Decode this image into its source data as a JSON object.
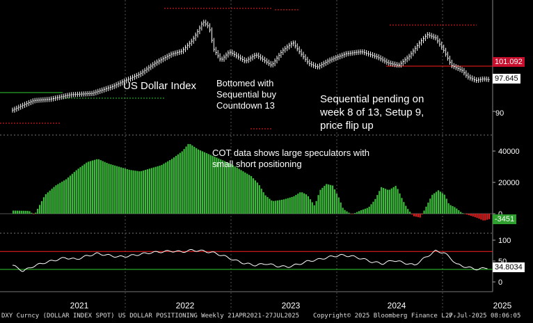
{
  "chart_data": {
    "type": "line",
    "title": "US Dollar Index",
    "x_axis": {
      "labels": [
        "2021",
        "2022",
        "2023",
        "2024",
        "2025"
      ]
    },
    "panels": [
      {
        "name": "DXY",
        "type": "ohlc",
        "y_ticks": [
          90
        ],
        "last_value": "97.645",
        "level_value": "101.092",
        "points": [
          {
            "t": 0.0,
            "v": 90.3
          },
          {
            "t": 0.1,
            "v": 91.5
          },
          {
            "t": 0.2,
            "v": 92.6
          },
          {
            "t": 0.35,
            "v": 92.9
          },
          {
            "t": 0.55,
            "v": 94.0
          },
          {
            "t": 0.75,
            "v": 94.3
          },
          {
            "t": 0.95,
            "v": 96.0
          },
          {
            "t": 1.05,
            "v": 97.2
          },
          {
            "t": 1.2,
            "v": 98.9
          },
          {
            "t": 1.35,
            "v": 101.6
          },
          {
            "t": 1.5,
            "v": 103.7
          },
          {
            "t": 1.6,
            "v": 104.4
          },
          {
            "t": 1.7,
            "v": 107.0
          },
          {
            "t": 1.76,
            "v": 109.5
          },
          {
            "t": 1.8,
            "v": 111.5
          },
          {
            "t": 1.86,
            "v": 110.2
          },
          {
            "t": 1.9,
            "v": 105.0
          },
          {
            "t": 1.97,
            "v": 102.2
          },
          {
            "t": 2.05,
            "v": 104.3
          },
          {
            "t": 2.2,
            "v": 102.0
          },
          {
            "t": 2.3,
            "v": 103.6
          },
          {
            "t": 2.45,
            "v": 101.0
          },
          {
            "t": 2.55,
            "v": 104.5
          },
          {
            "t": 2.65,
            "v": 106.5
          },
          {
            "t": 2.72,
            "v": 104.0
          },
          {
            "t": 2.8,
            "v": 101.5
          },
          {
            "t": 2.88,
            "v": 100.6
          },
          {
            "t": 3.0,
            "v": 102.3
          },
          {
            "t": 3.15,
            "v": 103.8
          },
          {
            "t": 3.3,
            "v": 104.3
          },
          {
            "t": 3.45,
            "v": 103.0
          },
          {
            "t": 3.55,
            "v": 101.6
          },
          {
            "t": 3.65,
            "v": 101.0
          },
          {
            "t": 3.75,
            "v": 103.2
          },
          {
            "t": 3.85,
            "v": 106.5
          },
          {
            "t": 3.92,
            "v": 108.4
          },
          {
            "t": 4.0,
            "v": 107.6
          },
          {
            "t": 4.08,
            "v": 104.5
          },
          {
            "t": 4.15,
            "v": 101.0
          },
          {
            "t": 4.25,
            "v": 99.8
          },
          {
            "t": 4.3,
            "v": 98.3
          },
          {
            "t": 4.38,
            "v": 97.4
          },
          {
            "t": 4.45,
            "v": 97.8
          },
          {
            "t": 4.5,
            "v": 97.6
          }
        ]
      },
      {
        "name": "COT",
        "type": "bar",
        "y_ticks": [
          0,
          20000,
          40000
        ],
        "last_value": "-3451",
        "points": [
          {
            "t": 0.0,
            "v": 2000
          },
          {
            "t": 0.15,
            "v": 1800
          },
          {
            "t": 0.2,
            "v": -800
          },
          {
            "t": 0.3,
            "v": 12000
          },
          {
            "t": 0.4,
            "v": 18000
          },
          {
            "t": 0.5,
            "v": 22000
          },
          {
            "t": 0.6,
            "v": 28000
          },
          {
            "t": 0.7,
            "v": 33000
          },
          {
            "t": 0.8,
            "v": 35000
          },
          {
            "t": 0.9,
            "v": 32000
          },
          {
            "t": 1.0,
            "v": 30000
          },
          {
            "t": 1.1,
            "v": 28000
          },
          {
            "t": 1.2,
            "v": 27000
          },
          {
            "t": 1.3,
            "v": 29000
          },
          {
            "t": 1.4,
            "v": 31000
          },
          {
            "t": 1.5,
            "v": 35000
          },
          {
            "t": 1.6,
            "v": 40000
          },
          {
            "t": 1.66,
            "v": 45000
          },
          {
            "t": 1.75,
            "v": 41000
          },
          {
            "t": 1.85,
            "v": 38000
          },
          {
            "t": 1.95,
            "v": 35000
          },
          {
            "t": 2.05,
            "v": 32000
          },
          {
            "t": 2.15,
            "v": 28000
          },
          {
            "t": 2.25,
            "v": 24000
          },
          {
            "t": 2.32,
            "v": 19000
          },
          {
            "t": 2.38,
            "v": 12000
          },
          {
            "t": 2.45,
            "v": 8000
          },
          {
            "t": 2.55,
            "v": 9000
          },
          {
            "t": 2.65,
            "v": 11000
          },
          {
            "t": 2.72,
            "v": 14000
          },
          {
            "t": 2.78,
            "v": 12000
          },
          {
            "t": 2.85,
            "v": 5000
          },
          {
            "t": 2.9,
            "v": 15000
          },
          {
            "t": 2.96,
            "v": 19000
          },
          {
            "t": 3.02,
            "v": 18000
          },
          {
            "t": 3.08,
            "v": 10000
          },
          {
            "t": 3.12,
            "v": 3000
          },
          {
            "t": 3.2,
            "v": -500
          },
          {
            "t": 3.28,
            "v": 2000
          },
          {
            "t": 3.36,
            "v": 4000
          },
          {
            "t": 3.42,
            "v": 9000
          },
          {
            "t": 3.48,
            "v": 17000
          },
          {
            "t": 3.55,
            "v": 15000
          },
          {
            "t": 3.62,
            "v": 18000
          },
          {
            "t": 3.68,
            "v": 9000
          },
          {
            "t": 3.72,
            "v": 4000
          },
          {
            "t": 3.78,
            "v": -1500
          },
          {
            "t": 3.85,
            "v": -2500
          },
          {
            "t": 3.9,
            "v": 4000
          },
          {
            "t": 3.96,
            "v": 12000
          },
          {
            "t": 4.02,
            "v": 15000
          },
          {
            "t": 4.08,
            "v": 12000
          },
          {
            "t": 4.12,
            "v": 6000
          },
          {
            "t": 4.18,
            "v": 4000
          },
          {
            "t": 4.24,
            "v": 600
          },
          {
            "t": 4.3,
            "v": -800
          },
          {
            "t": 4.38,
            "v": -2500
          },
          {
            "t": 4.45,
            "v": -4500
          },
          {
            "t": 4.5,
            "v": -3451
          }
        ]
      },
      {
        "name": "Index",
        "type": "line",
        "y_ticks": [
          0,
          50,
          100
        ],
        "last_value": "34.8034",
        "upper_level": 73,
        "lower_level": 30,
        "points": [
          {
            "t": 0.0,
            "v": 40
          },
          {
            "t": 0.1,
            "v": 26
          },
          {
            "t": 0.2,
            "v": 38
          },
          {
            "t": 0.3,
            "v": 46
          },
          {
            "t": 0.4,
            "v": 52
          },
          {
            "t": 0.5,
            "v": 58
          },
          {
            "t": 0.6,
            "v": 54
          },
          {
            "t": 0.7,
            "v": 62
          },
          {
            "t": 0.8,
            "v": 68
          },
          {
            "t": 0.9,
            "v": 64
          },
          {
            "t": 1.0,
            "v": 60
          },
          {
            "t": 1.1,
            "v": 62
          },
          {
            "t": 1.2,
            "v": 66
          },
          {
            "t": 1.3,
            "v": 70
          },
          {
            "t": 1.4,
            "v": 72
          },
          {
            "t": 1.5,
            "v": 74
          },
          {
            "t": 1.6,
            "v": 72
          },
          {
            "t": 1.7,
            "v": 76
          },
          {
            "t": 1.8,
            "v": 74
          },
          {
            "t": 1.9,
            "v": 70
          },
          {
            "t": 2.0,
            "v": 62
          },
          {
            "t": 2.1,
            "v": 52
          },
          {
            "t": 2.2,
            "v": 44
          },
          {
            "t": 2.3,
            "v": 40
          },
          {
            "t": 2.4,
            "v": 44
          },
          {
            "t": 2.5,
            "v": 38
          },
          {
            "t": 2.6,
            "v": 36
          },
          {
            "t": 2.7,
            "v": 42
          },
          {
            "t": 2.8,
            "v": 50
          },
          {
            "t": 2.9,
            "v": 54
          },
          {
            "t": 3.0,
            "v": 60
          },
          {
            "t": 3.1,
            "v": 64
          },
          {
            "t": 3.2,
            "v": 62
          },
          {
            "t": 3.3,
            "v": 56
          },
          {
            "t": 3.4,
            "v": 48
          },
          {
            "t": 3.5,
            "v": 44
          },
          {
            "t": 3.6,
            "v": 52
          },
          {
            "t": 3.7,
            "v": 46
          },
          {
            "t": 3.8,
            "v": 40
          },
          {
            "t": 3.9,
            "v": 58
          },
          {
            "t": 4.0,
            "v": 74
          },
          {
            "t": 4.08,
            "v": 70
          },
          {
            "t": 4.15,
            "v": 55
          },
          {
            "t": 4.2,
            "v": 42
          },
          {
            "t": 4.3,
            "v": 35
          },
          {
            "t": 4.4,
            "v": 30
          },
          {
            "t": 4.5,
            "v": 34.8
          }
        ]
      }
    ],
    "annotations": [
      "Bottomed with\nSequential buy\nCountdown 13",
      "Sequential pending on\nweek 8 of 13, Setup 9,\nprice flip up",
      "COT data shows large speculators with\nsmall short positioning"
    ],
    "footer": {
      "left": "DXY Curncy (DOLLAR INDEX SPOT) US DOLLAR POSITIONING Weekly 21APR2021-27JUL2025",
      "center": "Copyright© 2025 Bloomberg Finance L.P.",
      "right": "27-Jul-2025 08:06:05"
    },
    "colors": {
      "price": "#ffffff",
      "positive_bar": "#3dbb3d",
      "negative_bar": "#e02020",
      "upper_band": "#ff2020",
      "lower_band": "#30d030",
      "level_badge": "#c8102e",
      "last_badge": "#ffffff",
      "cot_badge": "#2fa02f"
    }
  }
}
